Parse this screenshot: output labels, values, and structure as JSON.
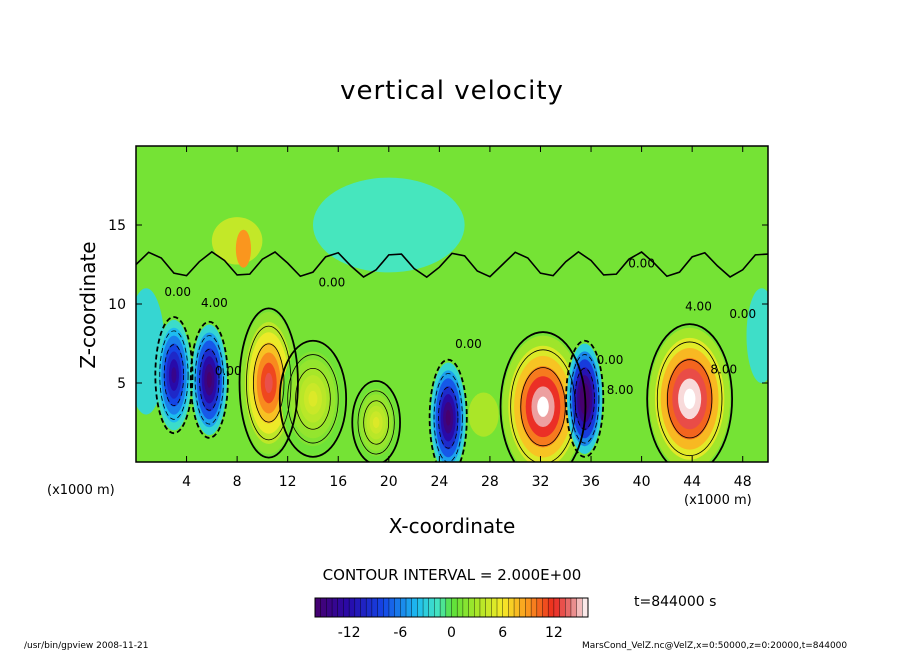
{
  "chart_data": {
    "type": "heatmap",
    "title": "vertical velocity",
    "xlabel": "X-coordinate",
    "ylabel": "Z-coordinate",
    "x_unit": "(x1000 m)",
    "x_ticks": [
      4,
      8,
      12,
      16,
      20,
      24,
      28,
      32,
      36,
      40,
      44,
      48
    ],
    "y_ticks": [
      5,
      10,
      15
    ],
    "xlim": [
      0,
      50
    ],
    "ylim": [
      0,
      20
    ],
    "contour_interval": "CONTOUR INTERVAL = 2.000E+00",
    "colorbar": {
      "range": [
        -16,
        16
      ],
      "ticks": [
        "-12",
        "-6",
        "0",
        "6",
        "12"
      ],
      "tick_values": [
        -12,
        -6,
        0,
        6,
        12
      ]
    },
    "contour_labels": [
      {
        "text": "0.00",
        "x": 15.5,
        "y": 11.1
      },
      {
        "text": "4.00",
        "x": 44.5,
        "y": 9.6
      },
      {
        "text": "0.00",
        "x": 48.0,
        "y": 9.1
      },
      {
        "text": "8.00",
        "x": 46.5,
        "y": 5.6
      },
      {
        "text": "4.00",
        "x": 6.2,
        "y": 9.8
      },
      {
        "text": "0.00",
        "x": 3.3,
        "y": 10.5
      },
      {
        "text": "0.00",
        "x": 7.3,
        "y": 5.5
      },
      {
        "text": "0.00",
        "x": 26.3,
        "y": 7.2
      },
      {
        "text": "0.00",
        "x": 37.5,
        "y": 6.2
      },
      {
        "text": "0.00",
        "x": 40.0,
        "y": 12.3
      },
      {
        "text": "8.00",
        "x": 38.3,
        "y": 4.3
      }
    ],
    "features": [
      {
        "sign": "negative",
        "x": 3.0,
        "y": 5.5,
        "peak": -14
      },
      {
        "sign": "negative",
        "x": 5.8,
        "y": 5.2,
        "peak": -17
      },
      {
        "sign": "positive",
        "x": 10.5,
        "y": 5.0,
        "peak": 13
      },
      {
        "sign": "positive",
        "x": 14.0,
        "y": 4.0,
        "peak": 5
      },
      {
        "sign": "positive",
        "x": 19.0,
        "y": 2.5,
        "peak": 5
      },
      {
        "sign": "negative",
        "x": 24.7,
        "y": 2.8,
        "peak": -17
      },
      {
        "sign": "positive",
        "x": 32.2,
        "y": 3.5,
        "peak": 17
      },
      {
        "sign": "negative",
        "x": 35.5,
        "y": 4.0,
        "peak": -20
      },
      {
        "sign": "positive",
        "x": 43.8,
        "y": 4.0,
        "peak": 18
      }
    ],
    "time": "t=844000 s"
  },
  "footer": {
    "left": "/usr/bin/gpview   2008-11-21",
    "right": "MarsCond_VelZ.nc@VelZ,x=0:50000,z=0:20000,t=844000"
  }
}
